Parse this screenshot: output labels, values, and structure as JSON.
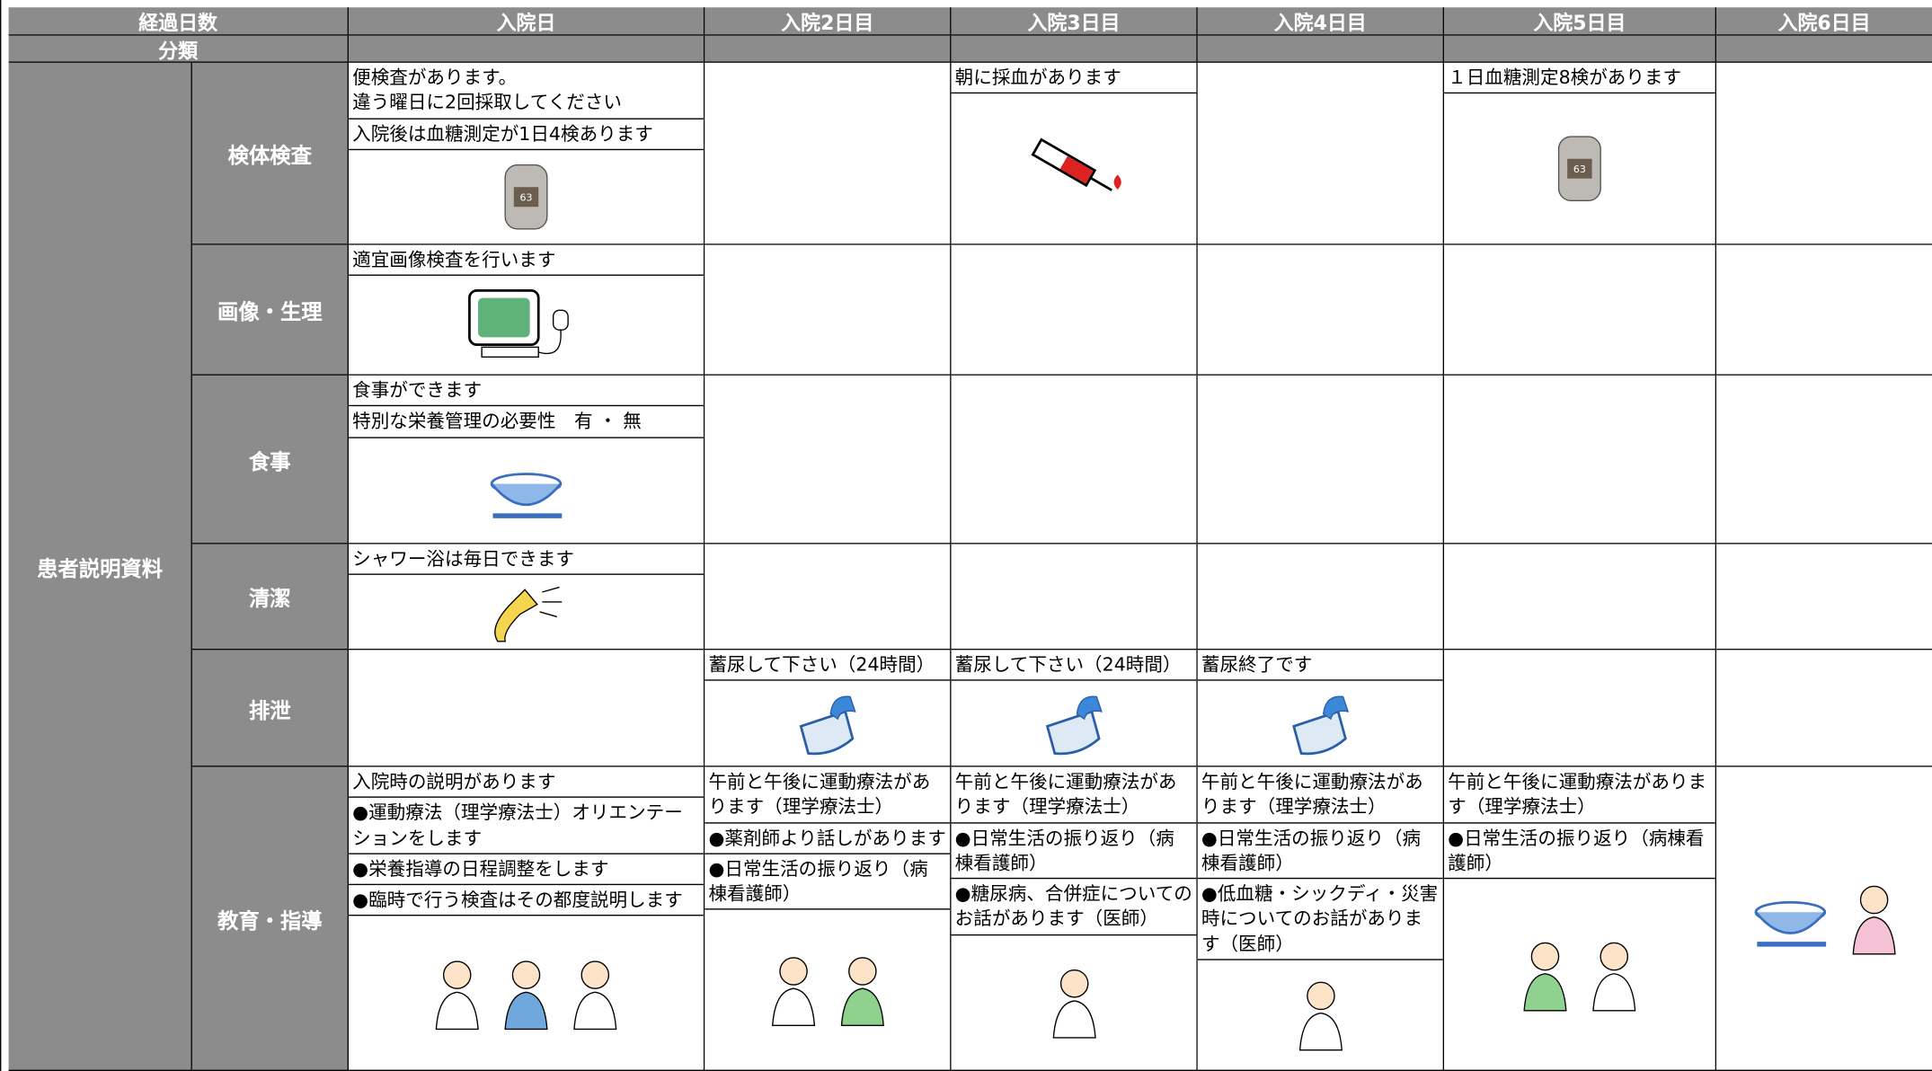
{
  "header": {
    "days_label": "経過日数",
    "category_label": "分類",
    "columns": [
      "入院日",
      "入院2日目",
      "入院3日目",
      "入院4日目",
      "入院5日目",
      "入院6日目"
    ]
  },
  "section_label": "患者説明資料",
  "rows": [
    {
      "label": "検体検査",
      "cells": [
        [
          "便検査があります。\n違う曜日に2回採取してください",
          "入院後は血糖測定が1日4検あります"
        ],
        [],
        [
          "朝に採血があります"
        ],
        [],
        [
          "１日血糖測定8検があります"
        ],
        []
      ]
    },
    {
      "label": "画像・生理",
      "cells": [
        [
          "適宜画像検査を行います"
        ],
        [],
        [],
        [],
        [],
        []
      ]
    },
    {
      "label": "食事",
      "cells": [
        [
          "食事ができます",
          "特別な栄養管理の必要性　有 ・ 無"
        ],
        [],
        [],
        [],
        [],
        []
      ]
    },
    {
      "label": "清潔",
      "cells": [
        [
          "シャワー浴は毎日できます"
        ],
        [],
        [],
        [],
        [],
        []
      ]
    },
    {
      "label": "排泄",
      "cells": [
        [],
        [
          "蓄尿して下さい（24時間）"
        ],
        [
          "蓄尿して下さい（24時間）"
        ],
        [
          "蓄尿終了です"
        ],
        [],
        []
      ]
    },
    {
      "label": "教育・指導",
      "cells": [
        [
          "入院時の説明があります",
          "●運動療法（理学療法士）オリエンテーションをします",
          "●栄養指導の日程調整をします",
          "●臨時で行う検査はその都度説明します"
        ],
        [
          "午前と午後に運動療法があります（理学療法士）",
          "●薬剤師より話しがあります",
          "●日常生活の振り返り（病棟看護師）"
        ],
        [
          "午前と午後に運動療法があります（理学療法士）",
          "●日常生活の振り返り（病棟看護師）",
          "●糖尿病、合併症についてのお話があります（医師）"
        ],
        [
          "午前と午後に運動療法があります（理学療法士）",
          "●日常生活の振り返り（病棟看護師）",
          "●低血糖・シックディ・災害時についてのお話があります（医師）"
        ],
        [
          "午前と午後に運動療法があります（理学療法士）",
          "●日常生活の振り返り（病棟看護師）"
        ],
        []
      ]
    }
  ]
}
